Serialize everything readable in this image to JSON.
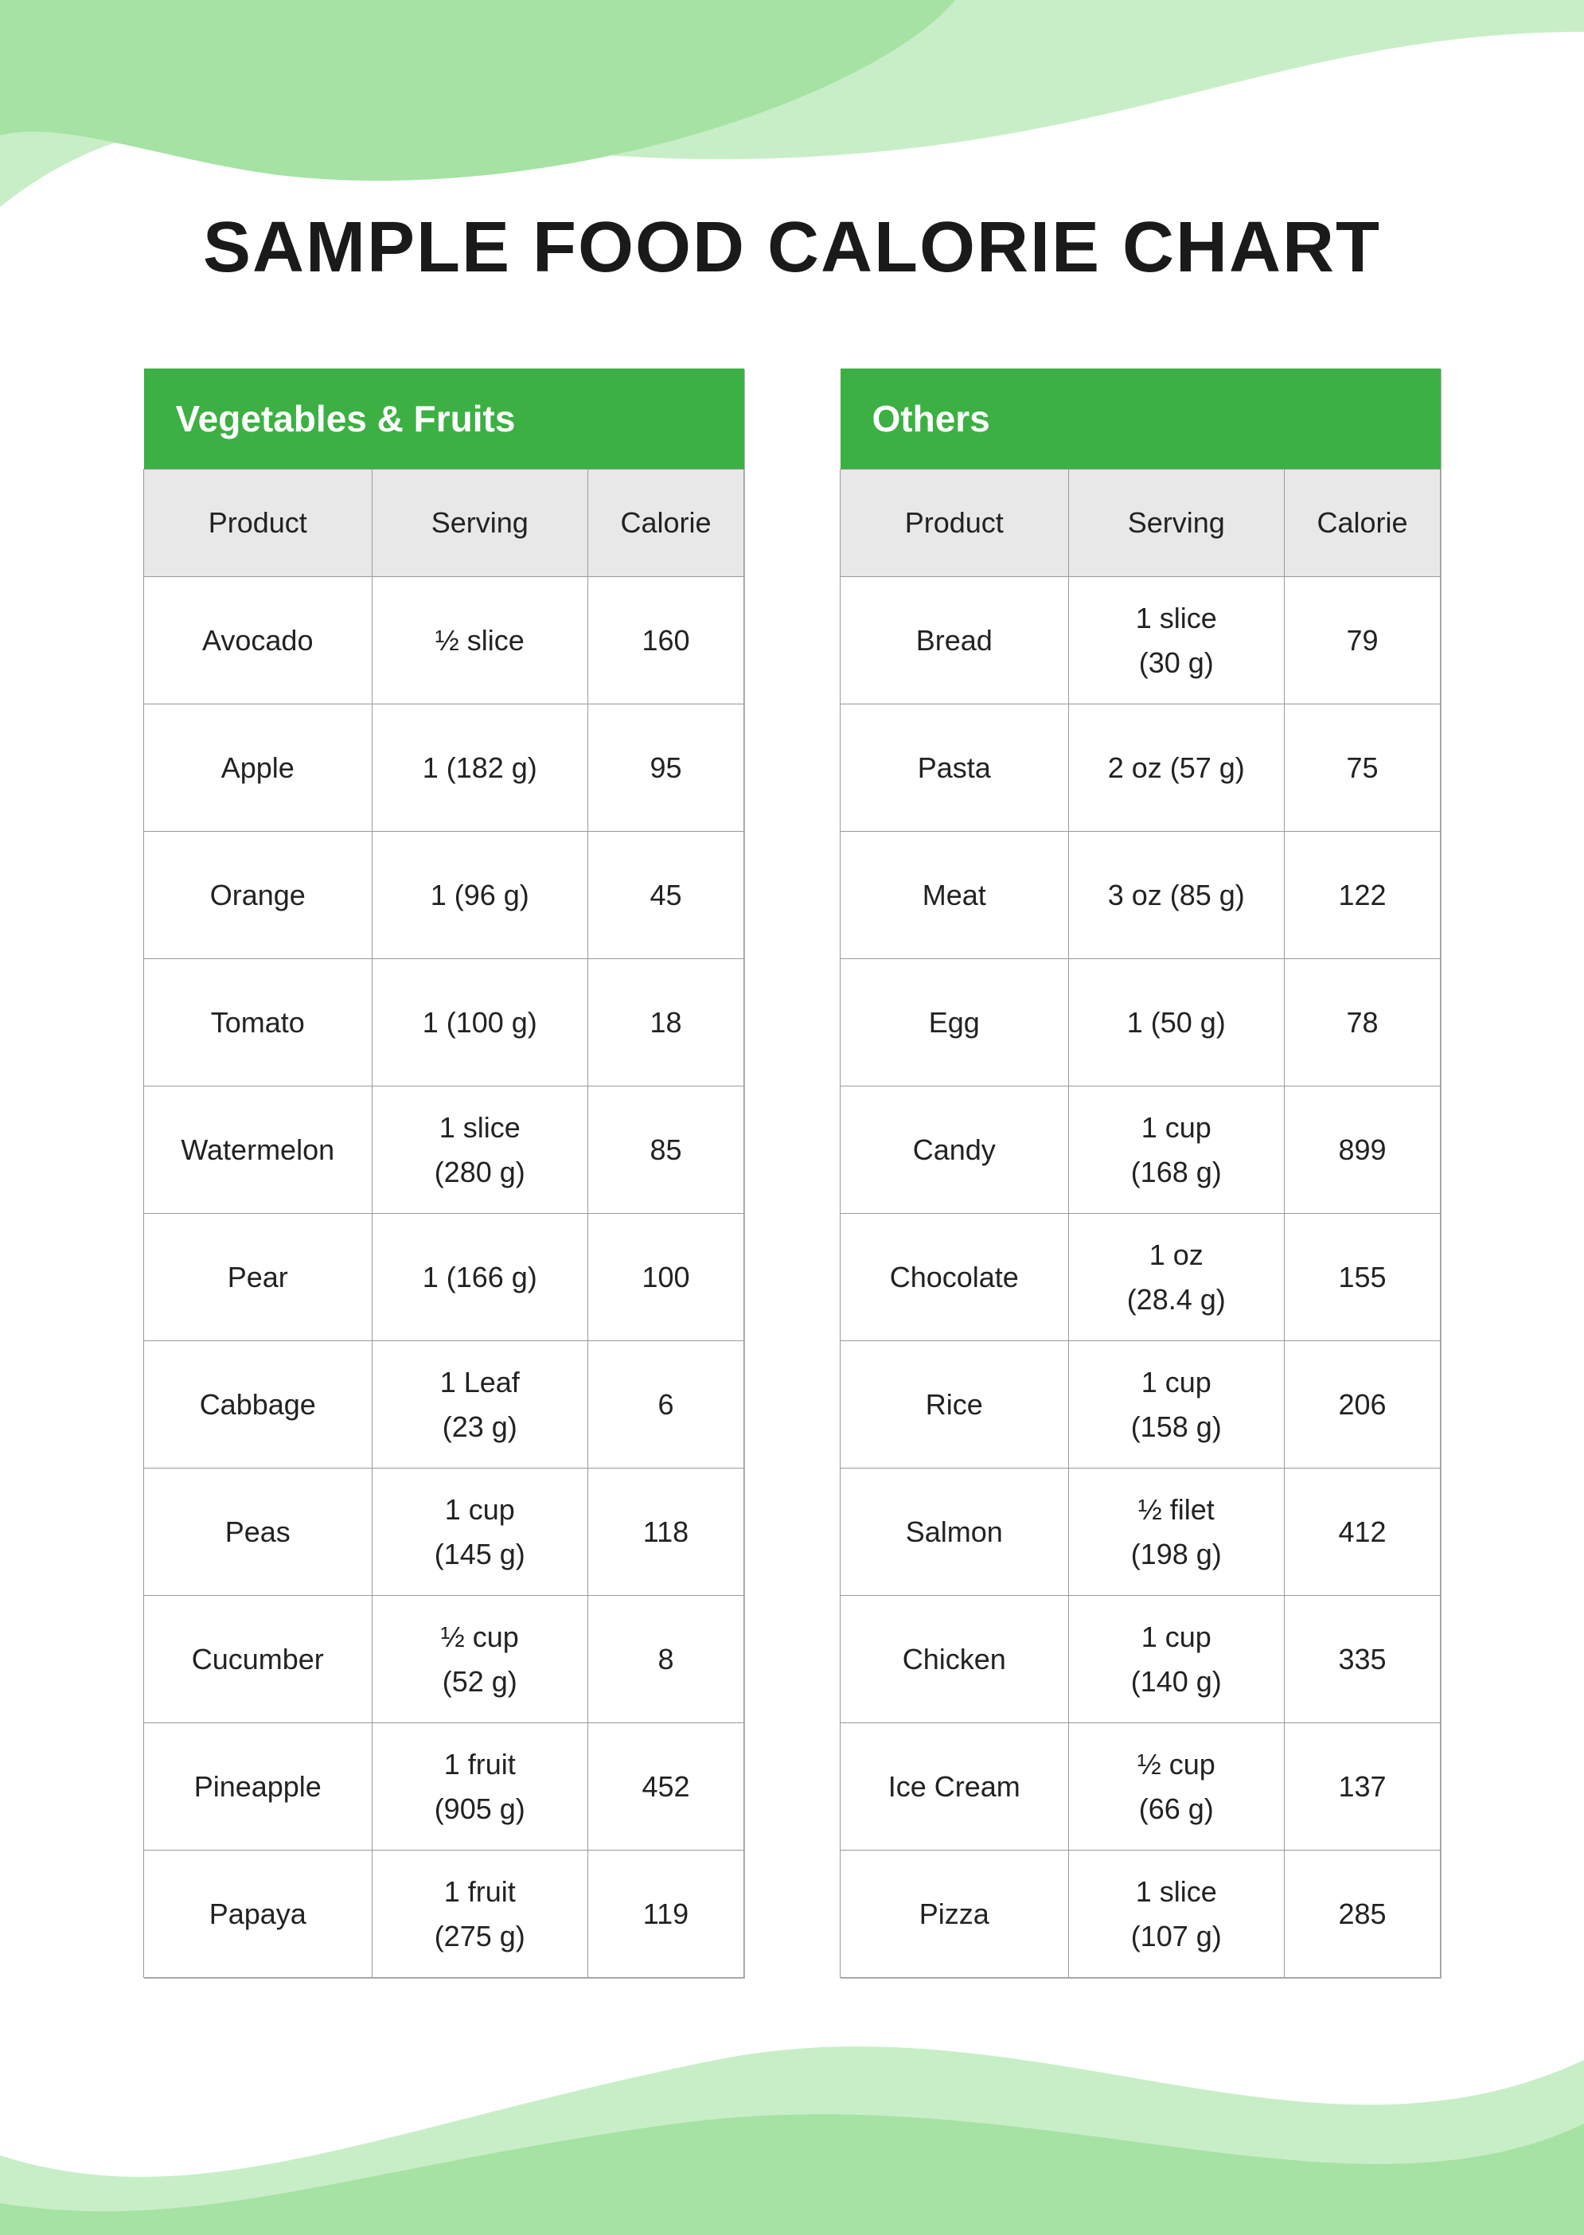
{
  "page": {
    "title": "SAMPLE FOOD CALORIE CHART",
    "background_color": "#ffffff",
    "title_color": "#1a1a1a",
    "title_fontsize": 90,
    "wave_colors": {
      "light": "#baeab9",
      "dark": "#a5e2a3",
      "opacity_light": 0.8
    }
  },
  "tables": {
    "common": {
      "type": "table",
      "columns": [
        "Product",
        "Serving",
        "Calorie"
      ],
      "header_bg": "#e8e8e8",
      "header_text_color": "#222222",
      "title_bg": "#3cb043",
      "title_text_color": "#ffffff",
      "cell_bg": "#ffffff",
      "border_color": "#9a9a9a",
      "font_size": 36,
      "title_font_size": 46,
      "column_widths_pct": [
        38,
        36,
        26
      ]
    },
    "left": {
      "title": "Vegetables & Fruits",
      "rows": [
        {
          "product": "Avocado",
          "serving": "½ slice",
          "calorie": "160"
        },
        {
          "product": "Apple",
          "serving": "1 (182 g)",
          "calorie": "95"
        },
        {
          "product": "Orange",
          "serving": "1 (96 g)",
          "calorie": "45"
        },
        {
          "product": "Tomato",
          "serving": "1 (100 g)",
          "calorie": "18"
        },
        {
          "product": "Watermelon",
          "serving": "1 slice\n(280 g)",
          "calorie": "85"
        },
        {
          "product": "Pear",
          "serving": "1 (166 g)",
          "calorie": "100"
        },
        {
          "product": "Cabbage",
          "serving": "1 Leaf\n(23 g)",
          "calorie": "6"
        },
        {
          "product": "Peas",
          "serving": "1 cup\n(145 g)",
          "calorie": "118"
        },
        {
          "product": "Cucumber",
          "serving": "½ cup\n(52 g)",
          "calorie": "8"
        },
        {
          "product": "Pineapple",
          "serving": "1 fruit\n(905 g)",
          "calorie": "452"
        },
        {
          "product": "Papaya",
          "serving": "1 fruit\n(275 g)",
          "calorie": "119"
        }
      ]
    },
    "right": {
      "title": "Others",
      "rows": [
        {
          "product": "Bread",
          "serving": "1 slice\n(30 g)",
          "calorie": "79"
        },
        {
          "product": "Pasta",
          "serving": "2 oz (57 g)",
          "calorie": "75"
        },
        {
          "product": "Meat",
          "serving": "3 oz (85 g)",
          "calorie": "122"
        },
        {
          "product": "Egg",
          "serving": "1 (50 g)",
          "calorie": "78"
        },
        {
          "product": "Candy",
          "serving": "1 cup\n(168 g)",
          "calorie": "899"
        },
        {
          "product": "Chocolate",
          "serving": "1 oz\n(28.4 g)",
          "calorie": "155"
        },
        {
          "product": "Rice",
          "serving": "1 cup\n(158 g)",
          "calorie": "206"
        },
        {
          "product": "Salmon",
          "serving": "½ filet\n(198 g)",
          "calorie": "412"
        },
        {
          "product": "Chicken",
          "serving": "1 cup\n(140 g)",
          "calorie": "335"
        },
        {
          "product": "Ice Cream",
          "serving": "½ cup\n(66 g)",
          "calorie": "137"
        },
        {
          "product": "Pizza",
          "serving": "1 slice\n(107 g)",
          "calorie": "285"
        }
      ]
    }
  }
}
